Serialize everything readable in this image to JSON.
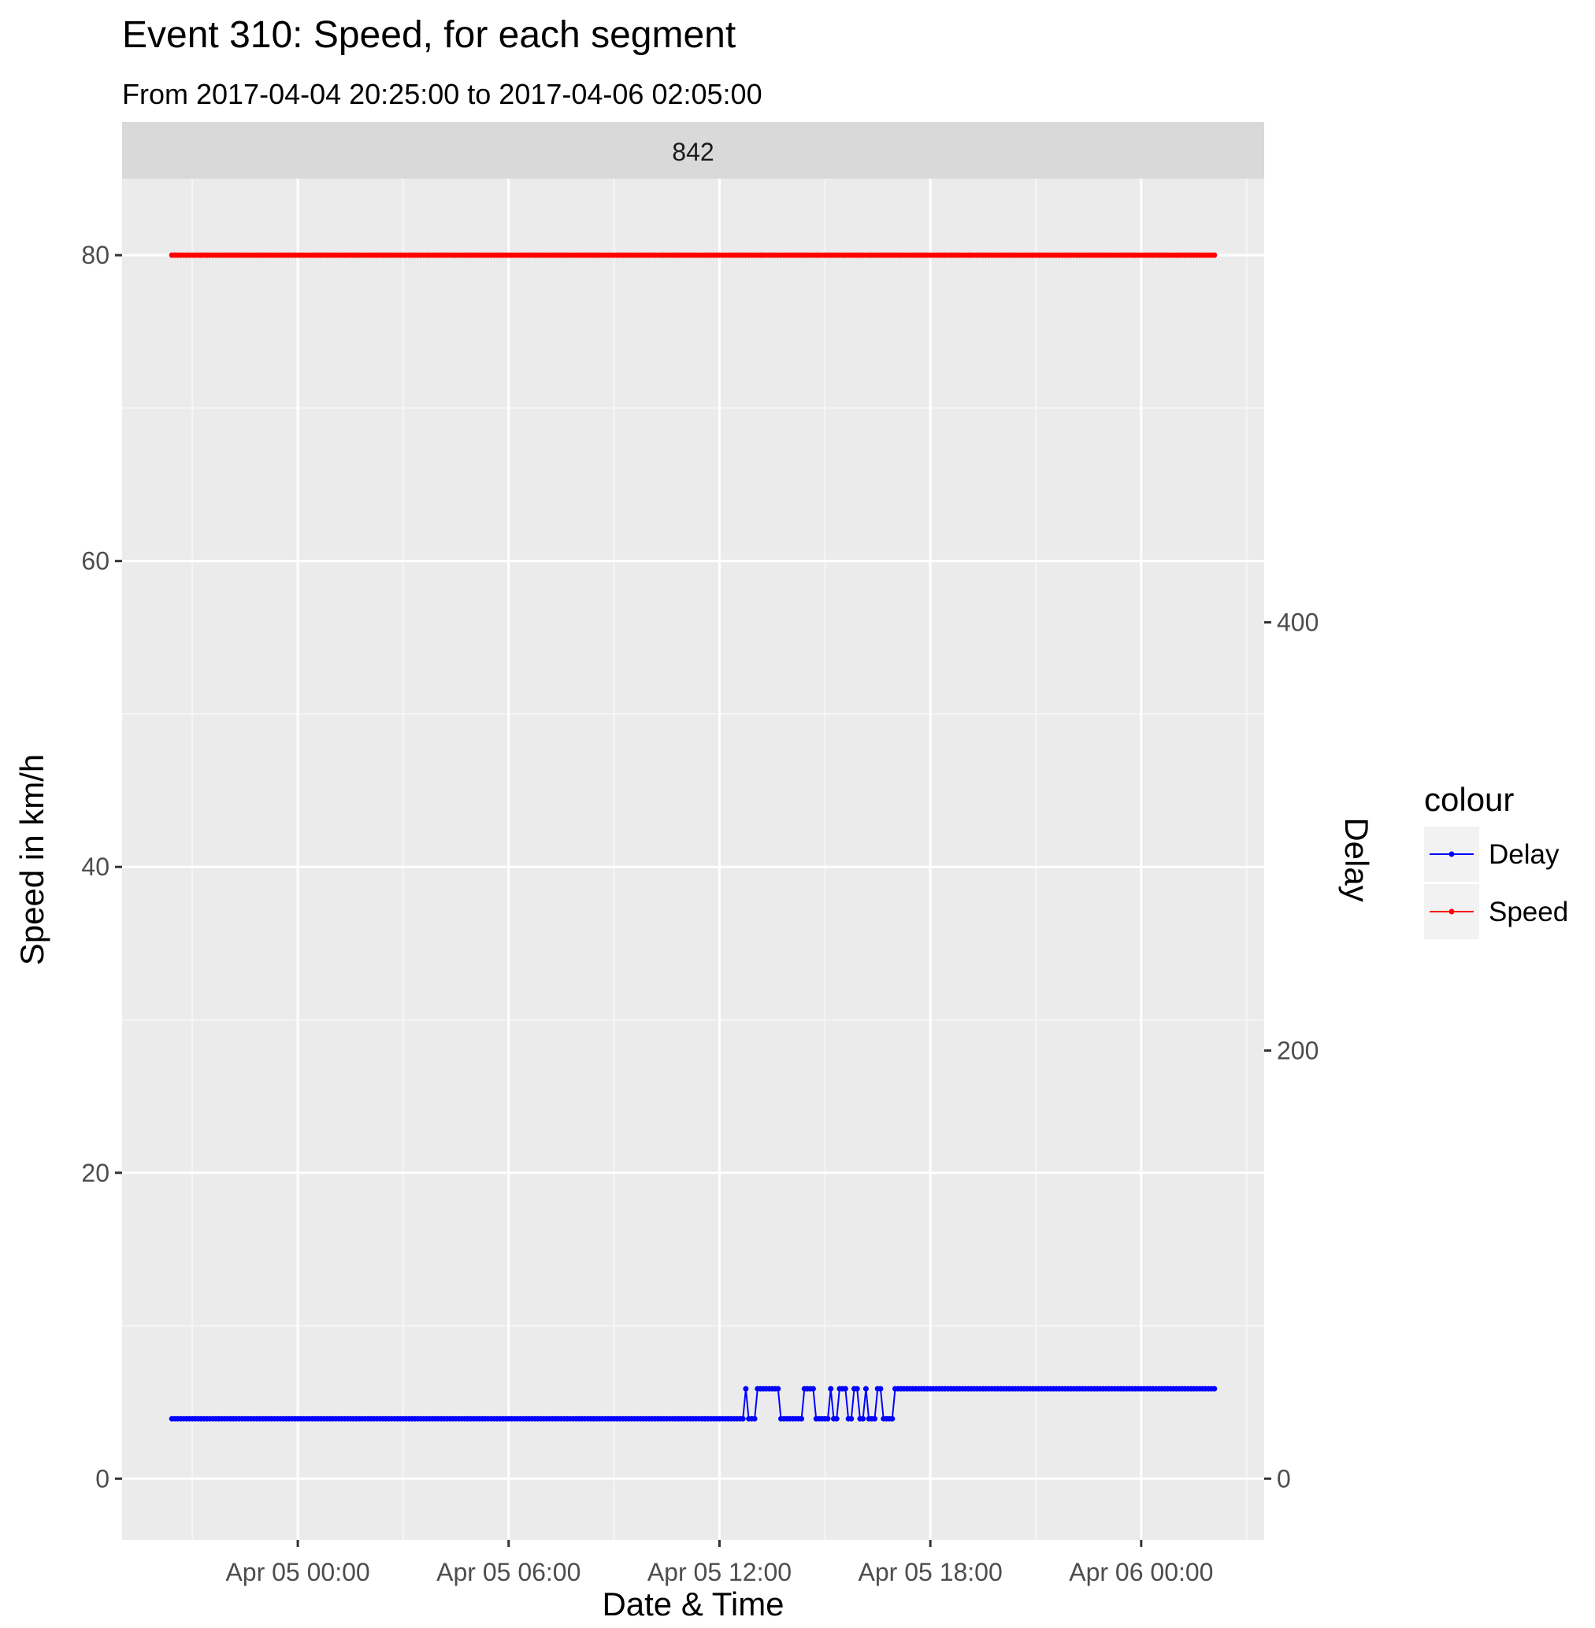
{
  "chart_data": {
    "type": "line",
    "title": "Event 310: Speed, for each segment",
    "subtitle": "From 2017-04-04 20:25:00 to 2017-04-06 02:05:00",
    "facet_label": "842",
    "xlabel": "Date & Time",
    "ylabel": "Speed in km/h",
    "y2label": "Delay",
    "x_ticks": [
      "Apr 05 00:00",
      "Apr 05 06:00",
      "Apr 05 12:00",
      "Apr 05 18:00",
      "Apr 06 00:00"
    ],
    "x_tick_times": [
      "2017-04-05 00:00",
      "2017-04-05 06:00",
      "2017-04-05 12:00",
      "2017-04-05 18:00",
      "2017-04-06 00:00"
    ],
    "xlim": [
      "2017-04-04 19:00",
      "2017-04-06 03:30"
    ],
    "ylim": [
      -4,
      85
    ],
    "y_ticks": [
      0,
      20,
      40,
      60,
      80
    ],
    "y2_ticks": [
      0,
      200,
      400
    ],
    "y2_per_y": 7.144,
    "grid": true,
    "legend": {
      "title": "colour",
      "position": "right",
      "entries": [
        {
          "label": "Delay",
          "color": "#0000ff"
        },
        {
          "label": "Speed",
          "color": "#ff0000"
        }
      ]
    },
    "series": [
      {
        "name": "Speed",
        "color": "#ff0000",
        "axis": "left",
        "start": "2017-04-04 20:25",
        "end": "2017-04-06 02:05",
        "value": 80
      },
      {
        "name": "Delay",
        "color": "#0000ff",
        "axis": "right",
        "points": [
          [
            "2017-04-04 20:25",
            28
          ],
          [
            "2017-04-05 12:40",
            28
          ],
          [
            "2017-04-05 12:45",
            42
          ],
          [
            "2017-04-05 12:50",
            28
          ],
          [
            "2017-04-05 13:00",
            28
          ],
          [
            "2017-04-05 13:05",
            42
          ],
          [
            "2017-04-05 13:40",
            42
          ],
          [
            "2017-04-05 13:45",
            28
          ],
          [
            "2017-04-05 14:20",
            28
          ],
          [
            "2017-04-05 14:25",
            42
          ],
          [
            "2017-04-05 14:40",
            42
          ],
          [
            "2017-04-05 14:45",
            28
          ],
          [
            "2017-04-05 15:05",
            28
          ],
          [
            "2017-04-05 15:10",
            42
          ],
          [
            "2017-04-05 15:15",
            28
          ],
          [
            "2017-04-05 15:20",
            28
          ],
          [
            "2017-04-05 15:25",
            42
          ],
          [
            "2017-04-05 15:35",
            42
          ],
          [
            "2017-04-05 15:40",
            28
          ],
          [
            "2017-04-05 15:45",
            28
          ],
          [
            "2017-04-05 15:50",
            42
          ],
          [
            "2017-04-05 15:55",
            42
          ],
          [
            "2017-04-05 16:00",
            28
          ],
          [
            "2017-04-05 16:05",
            28
          ],
          [
            "2017-04-05 16:10",
            42
          ],
          [
            "2017-04-05 16:15",
            28
          ],
          [
            "2017-04-05 16:25",
            28
          ],
          [
            "2017-04-05 16:30",
            42
          ],
          [
            "2017-04-05 16:35",
            42
          ],
          [
            "2017-04-05 16:40",
            28
          ],
          [
            "2017-04-05 16:55",
            28
          ],
          [
            "2017-04-05 17:00",
            42
          ],
          [
            "2017-04-06 02:05",
            42
          ]
        ]
      }
    ]
  }
}
